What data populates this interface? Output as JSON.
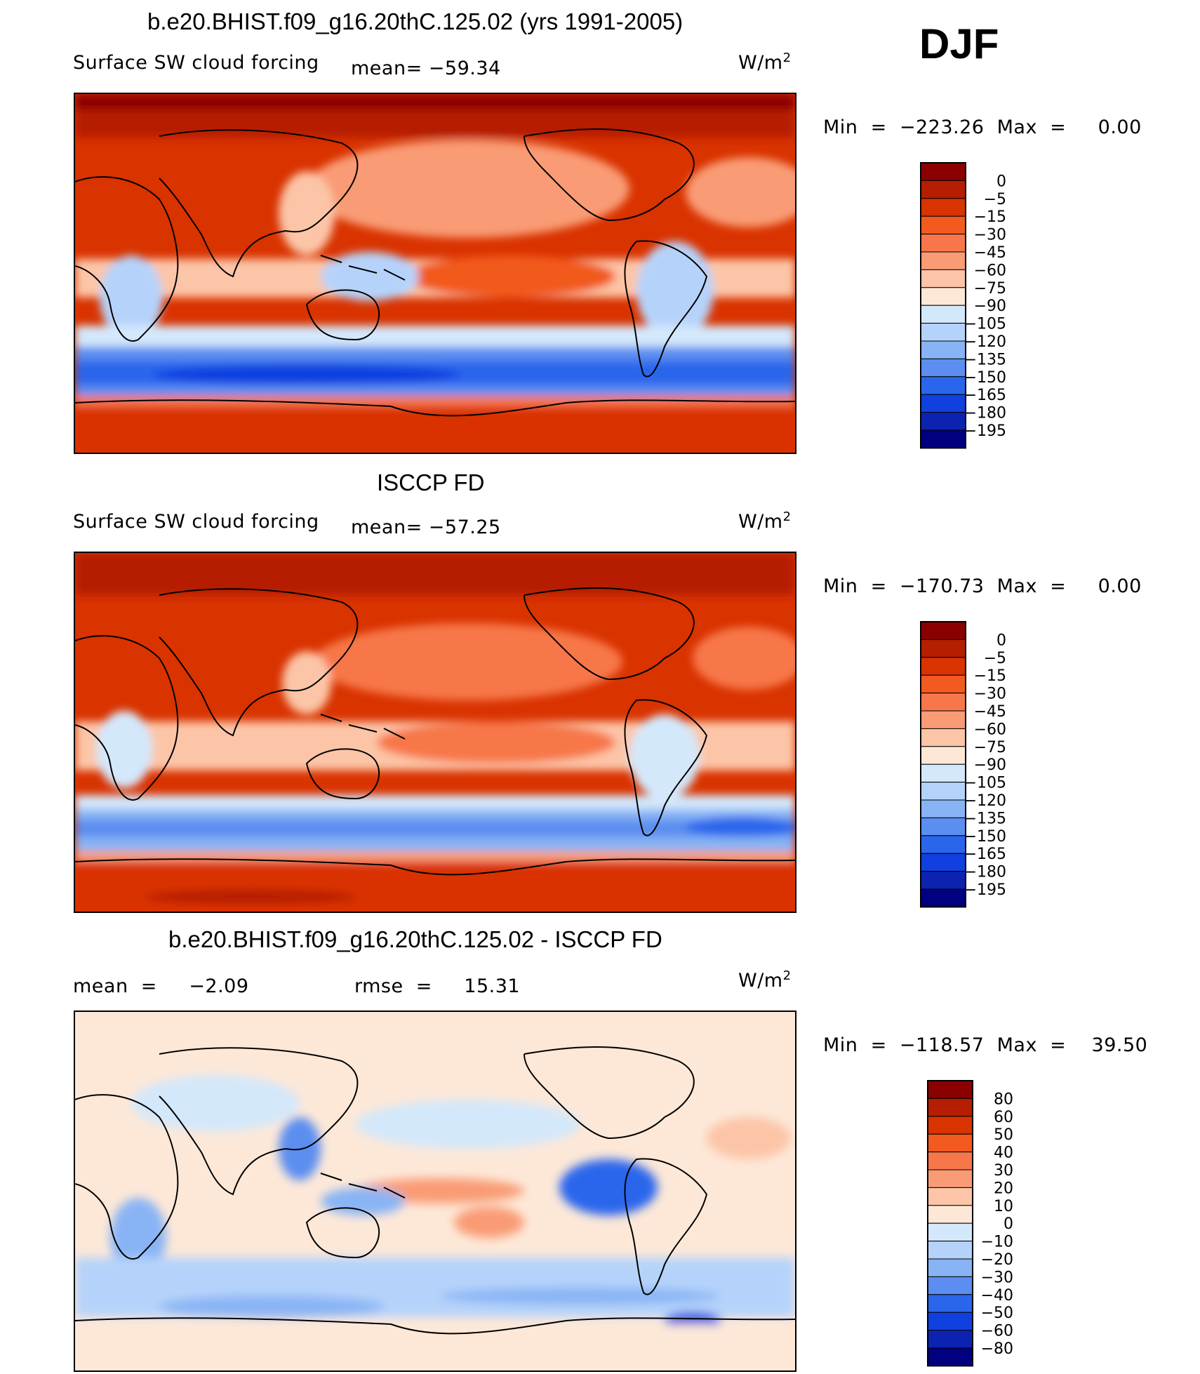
{
  "season": "DJF",
  "units": "W/m",
  "units_sup": "2",
  "panels": [
    {
      "title": "b.e20.BHIST.f09_g16.20thC.125.02 (yrs 1991-2005)",
      "left_label": "Surface SW cloud forcing",
      "mean_label": "mean= −59.34",
      "min_max": "Min  =  −223.26  Max  =     0.00",
      "colorbar": {
        "labels": [
          "0",
          "−5",
          "−15",
          "−30",
          "−45",
          "−60",
          "−75",
          "−90",
          "−105",
          "−120",
          "−135",
          "−150",
          "−165",
          "−180",
          "−195"
        ],
        "colors": [
          "#8b0000",
          "#b51e00",
          "#d93300",
          "#f25a1f",
          "#f7774a",
          "#f99b75",
          "#fcc5a7",
          "#fde8d8",
          "#d3e8fb",
          "#b5d3fa",
          "#88b4f5",
          "#5b8ef0",
          "#2a66ec",
          "#1040e0",
          "#0b23b0",
          "#000080"
        ]
      }
    },
    {
      "title": "ISCCP FD",
      "left_label": "Surface SW cloud forcing",
      "mean_label": "mean= −57.25",
      "min_max": "Min  =  −170.73  Max  =     0.00",
      "colorbar": {
        "labels": [
          "0",
          "−5",
          "−15",
          "−30",
          "−45",
          "−60",
          "−75",
          "−90",
          "−105",
          "−120",
          "−135",
          "−150",
          "−165",
          "−180",
          "−195"
        ],
        "colors": [
          "#8b0000",
          "#b51e00",
          "#d93300",
          "#f25a1f",
          "#f7774a",
          "#f99b75",
          "#fcc5a7",
          "#fde8d8",
          "#d3e8fb",
          "#b5d3fa",
          "#88b4f5",
          "#5b8ef0",
          "#2a66ec",
          "#1040e0",
          "#0b23b0",
          "#000080"
        ]
      }
    },
    {
      "title": "b.e20.BHIST.f09_g16.20thC.125.02 - ISCCP FD",
      "mean_label": "mean  =     −2.09",
      "rmse_label": "rmse  =     15.31",
      "min_max": "Min  =  −118.57  Max  =    39.50",
      "colorbar": {
        "labels": [
          "80",
          "60",
          "50",
          "40",
          "30",
          "20",
          "10",
          "0",
          "−10",
          "−20",
          "−30",
          "−40",
          "−50",
          "−60",
          "−80"
        ],
        "colors": [
          "#8b0000",
          "#b51e00",
          "#d93300",
          "#f25a1f",
          "#f7774a",
          "#f99b75",
          "#fcc5a7",
          "#fde8d8",
          "#d3e8fb",
          "#b5d3fa",
          "#88b4f5",
          "#5b8ef0",
          "#2a66ec",
          "#1040e0",
          "#0b23b0",
          "#000080"
        ]
      }
    }
  ],
  "chart_data": [
    {
      "type": "heatmap",
      "title": "b.e20.BHIST.f09_g16.20thC.125.02 (yrs 1991-2005)",
      "subtitle": "Surface SW cloud forcing",
      "units": "W/m2",
      "mean": -59.34,
      "min": -223.26,
      "max": 0.0,
      "contour_levels": [
        0,
        -5,
        -15,
        -30,
        -45,
        -60,
        -75,
        -90,
        -105,
        -120,
        -135,
        -150,
        -165,
        -180,
        -195
      ],
      "grid": false,
      "legend": "right"
    },
    {
      "type": "heatmap",
      "title": "ISCCP FD",
      "subtitle": "Surface SW cloud forcing",
      "units": "W/m2",
      "mean": -57.25,
      "min": -170.73,
      "max": 0.0,
      "contour_levels": [
        0,
        -5,
        -15,
        -30,
        -45,
        -60,
        -75,
        -90,
        -105,
        -120,
        -135,
        -150,
        -165,
        -180,
        -195
      ],
      "grid": false,
      "legend": "right"
    },
    {
      "type": "heatmap",
      "title": "b.e20.BHIST.f09_g16.20thC.125.02 - ISCCP FD",
      "units": "W/m2",
      "mean": -2.09,
      "rmse": 15.31,
      "min": -118.57,
      "max": 39.5,
      "contour_levels": [
        80,
        60,
        50,
        40,
        30,
        20,
        10,
        0,
        -10,
        -20,
        -30,
        -40,
        -50,
        -60,
        -80
      ],
      "grid": false,
      "legend": "right"
    }
  ]
}
